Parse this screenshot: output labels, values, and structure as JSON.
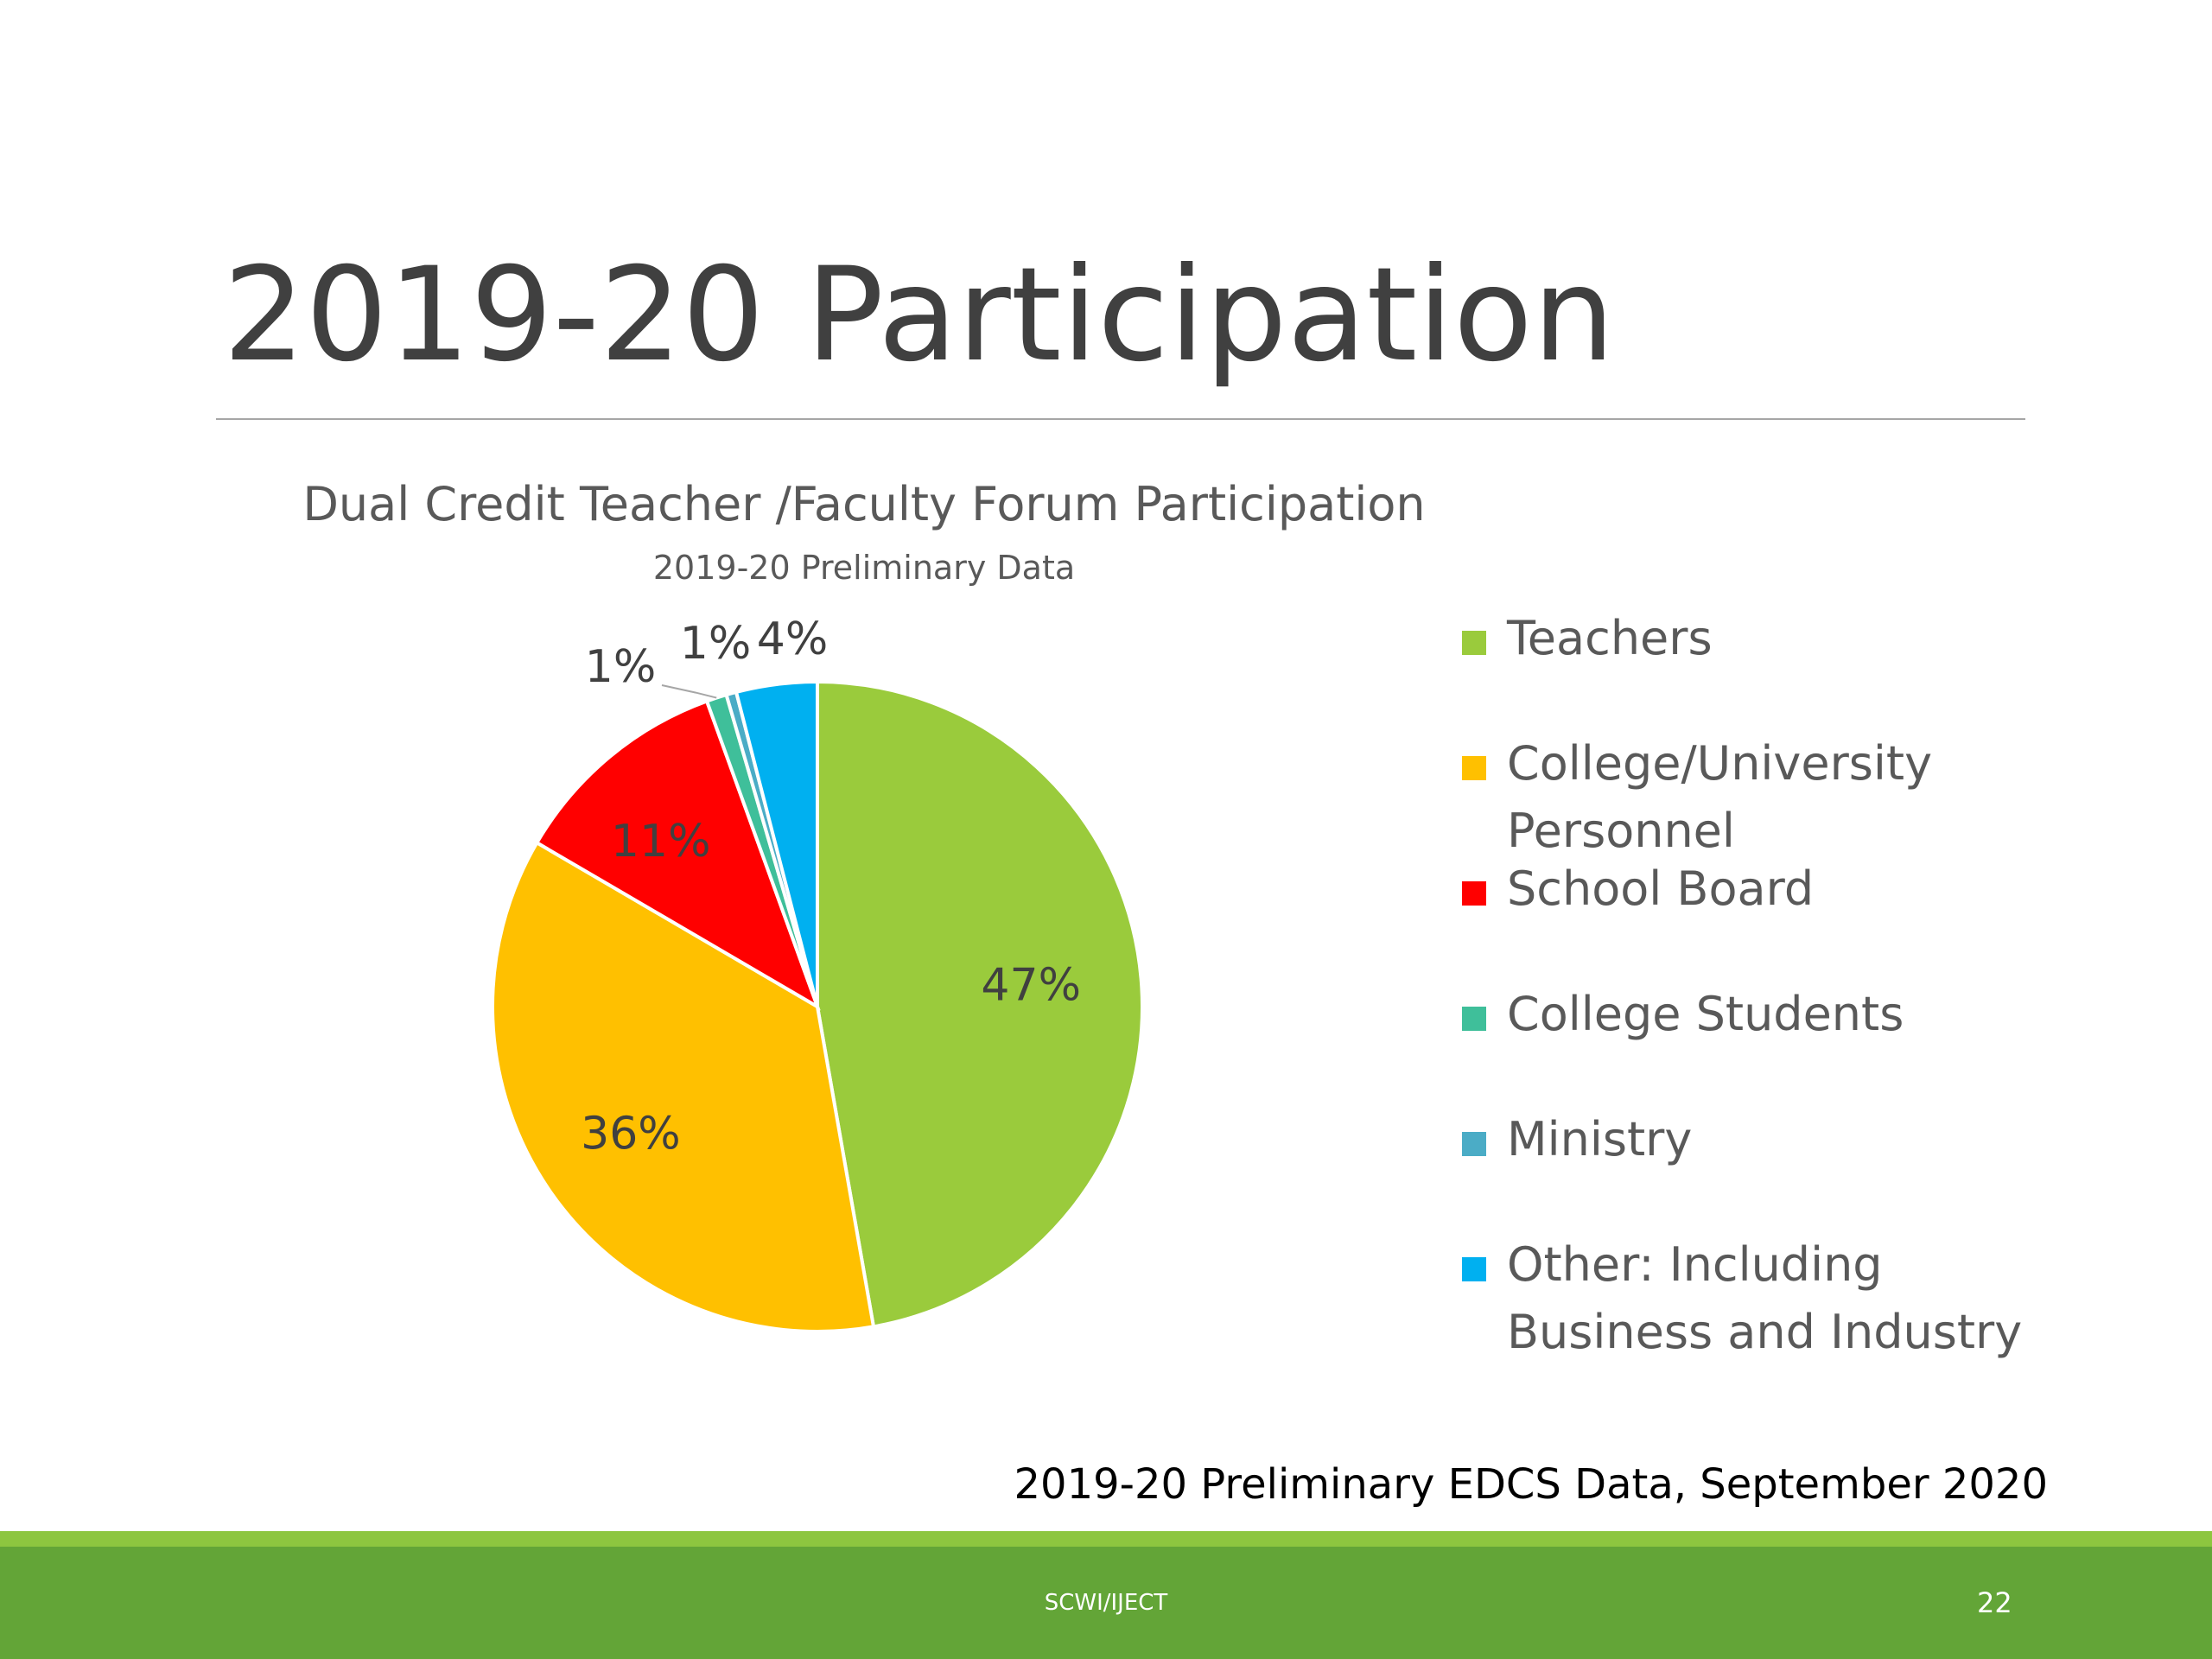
{
  "slide": {
    "title": "2019-20 Participation",
    "source_note": "2019-20 Preliminary EDCS Data, September 2020",
    "footer_text": "SCWI/IJECT",
    "page_number": "22"
  },
  "chart_data": {
    "type": "pie",
    "title": "Dual Credit Teacher /Faculty Forum Participation",
    "subtitle": "2019-20 Preliminary Data",
    "legend_position": "right",
    "slices": [
      {
        "name": "Teachers",
        "value": 47,
        "label": "47%",
        "color": "#9acb3c"
      },
      {
        "name": "College/University Personnel",
        "value": 36,
        "label": "36%",
        "color": "#ffc000"
      },
      {
        "name": "School Board",
        "value": 11,
        "label": "11%",
        "color": "#ff0000"
      },
      {
        "name": "College Students",
        "value": 1,
        "label": "1%",
        "color": "#3fbf9a"
      },
      {
        "name": "Ministry",
        "value": 0.5,
        "label": "1%",
        "color": "#4bacc6"
      },
      {
        "name": "Other: Including Business and Industry",
        "value": 4,
        "label": "4%",
        "color": "#00b0f0"
      }
    ]
  }
}
